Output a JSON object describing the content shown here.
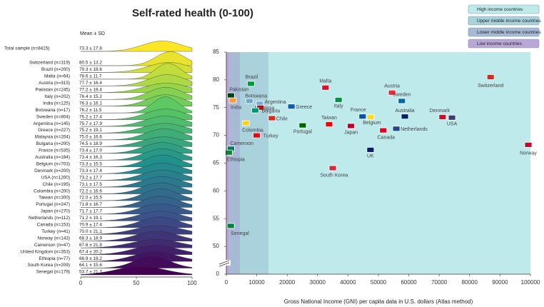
{
  "chart_data": {
    "type": "ridgeline-scatter",
    "title": "Self-rated health (0-100)",
    "stat_header": "Mean ± SD",
    "ridge_xlim": [
      0,
      100
    ],
    "ridge_xticks": [
      0,
      50,
      100
    ],
    "palette": [
      "#fde725",
      "#5ec962",
      "#21918c",
      "#3b528b",
      "#440154"
    ],
    "rows": [
      {
        "label": "Total sample (n=8415)",
        "mean": 73.3,
        "sd": 17.8,
        "stat": "73.3 ± 17.8"
      },
      {
        "label": "Switzerland (n=319)",
        "country": "Switzerland",
        "gni": 86900,
        "flag": "#d52b1e",
        "mean": 80.5,
        "sd": 13.2,
        "stat": "80.5 ± 13.2"
      },
      {
        "label": "Brazil (n=200)",
        "country": "Brazil",
        "gni": 8100,
        "flag": "#009c3b",
        "mean": 79.3,
        "sd": 18.6,
        "stat": "79.3 ± 18.6"
      },
      {
        "label": "Malta (n=64)",
        "country": "Malta",
        "gni": 32600,
        "flag": "#cf142b",
        "mean": 78.6,
        "sd": 11.7,
        "stat": "78.6 ± 11.7"
      },
      {
        "label": "Austria (n=315)",
        "country": "Austria",
        "gni": 54500,
        "flag": "#ed2939",
        "mean": 77.7,
        "sd": 16.4,
        "stat": "77.7 ± 16.4"
      },
      {
        "label": "Pakistan (n=245)",
        "country": "Pakistan",
        "gni": 1500,
        "flag": "#01411c",
        "mean": 77.2,
        "sd": 19.4,
        "stat": "77.2 ± 19.4"
      },
      {
        "label": "Italy (n=202)",
        "country": "Italy",
        "gni": 36900,
        "flag": "#009246",
        "mean": 76.4,
        "sd": 15.2,
        "stat": "76.4 ± 15.2"
      },
      {
        "label": "India (n=125)",
        "country": "India",
        "gni": 2100,
        "flag": "#ff9933",
        "mean": 76.3,
        "sd": 16.1,
        "stat": "76.3 ± 16.1"
      },
      {
        "label": "Botswana (n=17)",
        "country": "Botswana",
        "gni": 7600,
        "flag": "#6da9d2",
        "mean": 76.2,
        "sd": 11.5,
        "stat": "76.2 ± 11.5"
      },
      {
        "label": "Sweden (n=804)",
        "country": "Sweden",
        "gni": 57700,
        "flag": "#006aa7",
        "mean": 76.2,
        "sd": 17.4,
        "stat": "76.2 ± 17.4"
      },
      {
        "label": "Argentina (n=145)",
        "country": "Argentina",
        "gni": 11000,
        "flag": "#74acdf",
        "mean": 75.7,
        "sd": 17.9,
        "stat": "75.7 ± 17.9"
      },
      {
        "label": "Greece (n=227)",
        "country": "Greece",
        "gni": 21400,
        "flag": "#0d5eaf",
        "mean": 75.2,
        "sd": 19.1,
        "stat": "75.2 ± 19.1"
      },
      {
        "label": "Malaysia (n=204)",
        "country": "Malaysia",
        "gni": 11200,
        "flag": "#cc0001",
        "mean": 75.0,
        "sd": 16.6,
        "stat": "75.0 ± 16.6"
      },
      {
        "label": "Bulgaria (n=200)",
        "country": "Bulgaria",
        "gni": 9500,
        "flag": "#00966e",
        "mean": 74.5,
        "sd": 18.9,
        "stat": "74.5 ± 18.9"
      },
      {
        "label": "France (n=535)",
        "country": "France",
        "gni": 44800,
        "flag": "#0055a4",
        "mean": 73.4,
        "sd": 17.0,
        "stat": "73.4 ± 17.0"
      },
      {
        "label": "Australia (n=184)",
        "country": "Australia",
        "gni": 58700,
        "flag": "#012169",
        "mean": 73.4,
        "sd": 16.3,
        "stat": "73.4 ± 16.3"
      },
      {
        "label": "Belgium (n=703)",
        "country": "Belgium",
        "gni": 47400,
        "flag": "#fdda24",
        "mean": 73.3,
        "sd": 15.5,
        "stat": "73.3 ± 15.5"
      },
      {
        "label": "Denmark (n=200)",
        "country": "Denmark",
        "gni": 71100,
        "flag": "#c8102e",
        "mean": 73.3,
        "sd": 17.4,
        "stat": "73.3 ± 17.4"
      },
      {
        "label": "USA (n=1200)",
        "country": "USA",
        "gni": 74200,
        "flag": "#3c3b6e",
        "mean": 73.2,
        "sd": 17.7,
        "stat": "73.2 ± 17.7"
      },
      {
        "label": "Chile (n=195)",
        "country": "Chile",
        "gni": 15000,
        "flag": "#d52b1e",
        "mean": 73.1,
        "sd": 17.5,
        "stat": "73.1 ± 17.5"
      },
      {
        "label": "Colombia (n=200)",
        "country": "Colombia",
        "gni": 6400,
        "flag": "#fcd116",
        "mean": 72.2,
        "sd": 16.6,
        "stat": "72.2 ± 16.6"
      },
      {
        "label": "Taiwan (n=300)",
        "country": "Taiwan",
        "gni": 33800,
        "flag": "#fe0000",
        "mean": 72.0,
        "sd": 15.5,
        "stat": "72.0 ± 15.5"
      },
      {
        "label": "Portugal (n=247)",
        "country": "Portugal",
        "gni": 25100,
        "flag": "#006600",
        "mean": 71.8,
        "sd": 16.7,
        "stat": "71.8 ± 16.7"
      },
      {
        "label": "Japan (n=270)",
        "country": "Japan",
        "gni": 41000,
        "flag": "#bc002d",
        "mean": 71.7,
        "sd": 17.7,
        "stat": "71.7 ± 17.7"
      },
      {
        "label": "Netherlands (n=112)",
        "country": "Netherlands",
        "gni": 55900,
        "flag": "#21468b",
        "mean": 71.2,
        "sd": 19.1,
        "stat": "71.2 ± 19.1"
      },
      {
        "label": "Canada (n=153)",
        "country": "Canada",
        "gni": 51600,
        "flag": "#d80621",
        "mean": 70.9,
        "sd": 17.4,
        "stat": "70.9 ± 17.4"
      },
      {
        "label": "Turkey (n=41)",
        "country": "Turkey",
        "gni": 10000,
        "flag": "#e30a17",
        "mean": 70.0,
        "sd": 21.1,
        "stat": "70.0 ± 21.1"
      },
      {
        "label": "Norway (n=143)",
        "country": "Norway",
        "gni": 99300,
        "flag": "#ba0c2f",
        "mean": 68.3,
        "sd": 18.9,
        "stat": "68.3 ± 18.9"
      },
      {
        "label": "Cameroon (n=47)",
        "country": "Cameroon",
        "gni": 1500,
        "flag": "#007a5e",
        "mean": 67.6,
        "sd": 21.9,
        "stat": "67.6 ± 21.9"
      },
      {
        "label": "United Kingdom (n=353)",
        "country": "UK",
        "gni": 47400,
        "flag": "#012169",
        "mean": 67.4,
        "sd": 20.2,
        "stat": "67.4 ± 20.2"
      },
      {
        "label": "Ethiopia (n=77)",
        "country": "Ethiopia",
        "gni": 850,
        "flag": "#078930",
        "mean": 66.9,
        "sd": 19.2,
        "stat": "66.9 ± 19.2"
      },
      {
        "label": "South Korea (n=209)",
        "country": "South Korea",
        "gni": 35000,
        "flag": "#cd2e3a",
        "mean": 64.1,
        "sd": 15.6,
        "stat": "64.1 ± 15.6"
      },
      {
        "label": "Senegal (n=179)",
        "country": "Senegal",
        "gni": 1450,
        "flag": "#00853f",
        "mean": 53.7,
        "sd": 21.7,
        "stat": "53.7 ± 21.7"
      }
    ],
    "income_bands": [
      {
        "name": "High income countries",
        "color": "#bfeaec",
        "from": 13845,
        "to": 100000
      },
      {
        "name": "Upper middle income countries",
        "color": "#a9d2dc",
        "from": 4465,
        "to": 13845
      },
      {
        "name": "Lower middle income countries",
        "color": "#a6bad6",
        "from": 1135,
        "to": 4465
      },
      {
        "name": "Low income countries",
        "color": "#b9a8d6",
        "from": 0,
        "to": 1135
      }
    ],
    "x_label": "Gross National Income (GNI) per capita data in U.S. dollars (Atlas method)",
    "xlim": [
      0,
      100000
    ],
    "xticks": [
      0,
      10000,
      20000,
      30000,
      40000,
      50000,
      60000,
      70000,
      80000,
      90000,
      100000
    ],
    "ylim": [
      0,
      85
    ],
    "y_break": [
      0,
      45
    ],
    "yticks": [
      0,
      50,
      55,
      60,
      65,
      70,
      75,
      80,
      85
    ]
  }
}
